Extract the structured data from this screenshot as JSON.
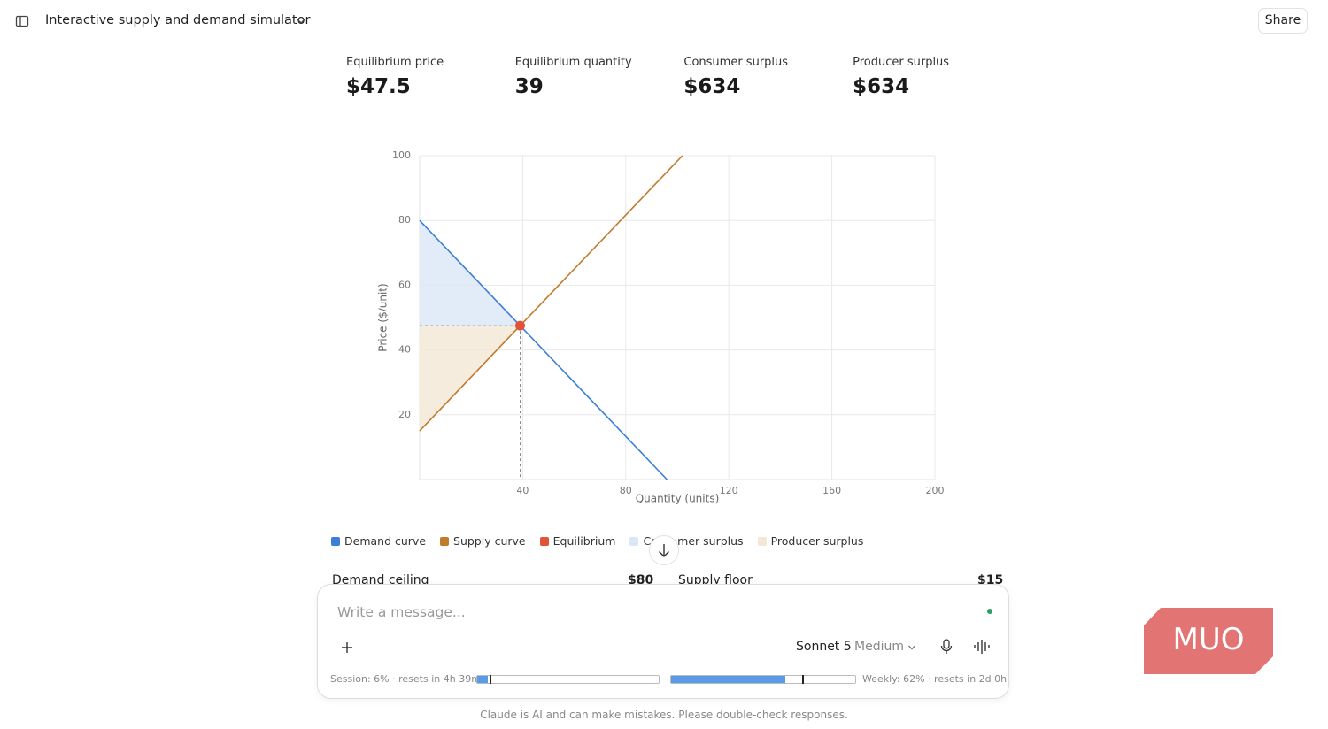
{
  "header": {
    "title": "Interactive supply and demand simulator",
    "share": "Share"
  },
  "stats": [
    {
      "label": "Equilibrium price",
      "value": "$47.5"
    },
    {
      "label": "Equilibrium quantity",
      "value": "39"
    },
    {
      "label": "Consumer surplus",
      "value": "$634"
    },
    {
      "label": "Producer surplus",
      "value": "$634"
    }
  ],
  "chart_data": {
    "type": "line",
    "x_label": "Quantity (units)",
    "y_label": "Price ($/unit)",
    "xlim": [
      0,
      200
    ],
    "xticks": [
      40,
      80,
      120,
      160,
      200
    ],
    "ylim": [
      0,
      100
    ],
    "yticks": [
      20,
      40,
      60,
      80,
      100
    ],
    "grid": true,
    "series": [
      {
        "name": "Demand curve",
        "color": "#3b7fd6",
        "x": [
          0,
          96
        ],
        "values": [
          80,
          0
        ]
      },
      {
        "name": "Supply curve",
        "color": "#c27a2c",
        "x": [
          0,
          102
        ],
        "values": [
          15,
          100
        ]
      },
      {
        "name": "Equilibrium",
        "color": "#e0553a",
        "x": [
          39
        ],
        "values": [
          47.5
        ]
      }
    ],
    "areas": [
      {
        "name": "Consumer surplus",
        "color": "#dbe6f6"
      },
      {
        "name": "Producer surplus",
        "color": "#f4e7d5"
      }
    ]
  },
  "controls": [
    {
      "label": "Demand ceiling",
      "value": "$80"
    },
    {
      "label": "Supply floor",
      "value": "$15"
    }
  ],
  "composer": {
    "placeholder": "Write a message...",
    "model": "Sonnet 5",
    "effort": "Medium",
    "session": {
      "label": "Session: 6% · resets in 4h 39m",
      "percent": 6
    },
    "weekly": {
      "label": "Weekly: 62% · resets in 2d 0h",
      "percent": 62
    }
  },
  "footer": "Claude is AI and can make mistakes. Please double-check responses.",
  "watermark": "MUO"
}
